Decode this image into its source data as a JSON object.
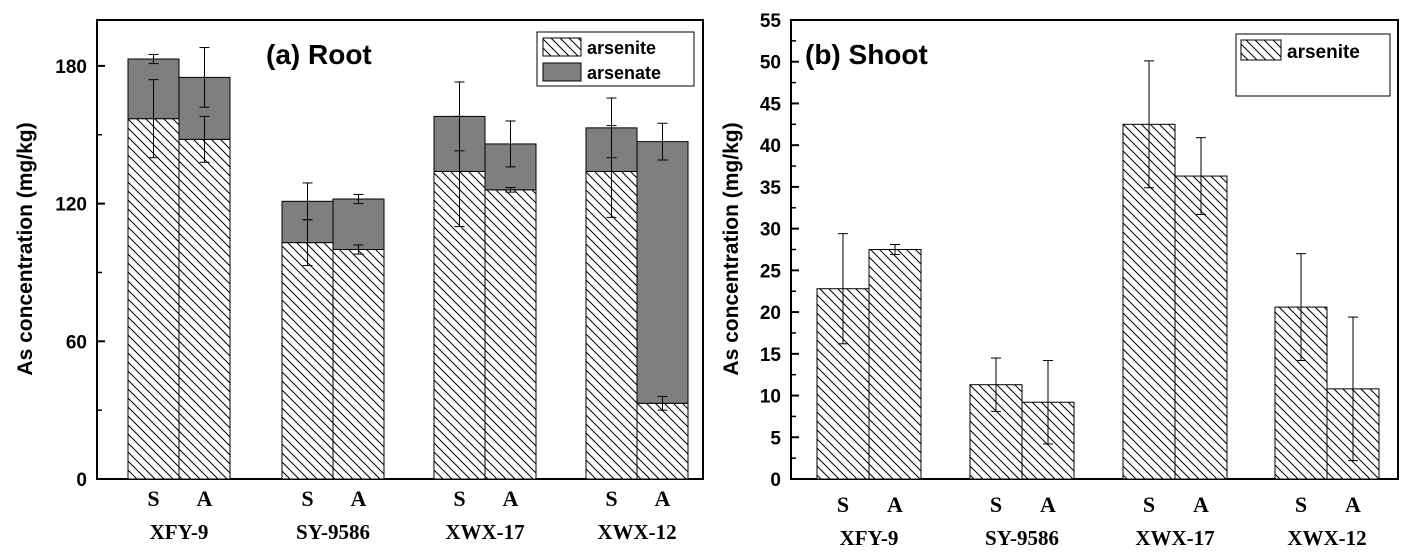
{
  "chart_data": [
    {
      "type": "bar",
      "stacked": true,
      "title": "(a) Root",
      "ylabel": "As concentration (mg/kg)",
      "ylim": [
        0,
        200
      ],
      "yticks": [
        0,
        60,
        120,
        180
      ],
      "groups": [
        "XFY-9",
        "SY-9586",
        "XWX-17",
        "XWX-12"
      ],
      "bar_labels": [
        "S",
        "A"
      ],
      "legend": {
        "placement": "top-right",
        "entries": [
          "arsenite",
          "arsenate"
        ]
      },
      "colors": {
        "arsenite": "#ffffff",
        "arsenate": "#7f7f7f"
      },
      "series": [
        {
          "name": "arsenite",
          "values": [
            [
              157,
              148
            ],
            [
              103,
              100
            ],
            [
              134,
              126
            ],
            [
              134,
              33
            ]
          ],
          "errors": [
            [
              17,
              10
            ],
            [
              10,
              2
            ],
            [
              24,
              1
            ],
            [
              20,
              3
            ]
          ]
        },
        {
          "name": "arsenate",
          "values": [
            [
              26,
              27
            ],
            [
              18,
              22
            ],
            [
              24,
              20
            ],
            [
              19,
              114
            ]
          ],
          "errors": [
            [
              2,
              13
            ],
            [
              8,
              2
            ],
            [
              15,
              10
            ],
            [
              13,
              8
            ]
          ]
        }
      ]
    },
    {
      "type": "bar",
      "title": "(b) Shoot",
      "ylabel": "As concentration (mg/kg)",
      "ylim": [
        0,
        55
      ],
      "yticks": [
        0,
        5,
        10,
        15,
        20,
        25,
        30,
        35,
        40,
        45,
        50,
        55
      ],
      "groups": [
        "XFY-9",
        "SY-9586",
        "XWX-17",
        "XWX-12"
      ],
      "bar_labels": [
        "S",
        "A"
      ],
      "legend": {
        "placement": "top-right",
        "entries": [
          "arsenite"
        ]
      },
      "series": [
        {
          "name": "arsenite",
          "values": [
            [
              22.8,
              27.5
            ],
            [
              11.3,
              9.2
            ],
            [
              42.5,
              36.3
            ],
            [
              20.6,
              10.8
            ]
          ],
          "errors": [
            [
              6.6,
              0.6
            ],
            [
              3.2,
              5.0
            ],
            [
              7.6,
              4.6
            ],
            [
              6.4,
              8.6
            ]
          ]
        }
      ]
    }
  ]
}
